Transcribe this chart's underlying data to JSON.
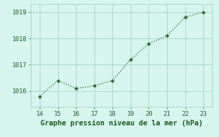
{
  "x": [
    14,
    15,
    16,
    17,
    18,
    19,
    20,
    21,
    22,
    23
  ],
  "y": [
    1015.8,
    1016.4,
    1016.1,
    1016.2,
    1016.4,
    1017.2,
    1017.8,
    1018.1,
    1018.8,
    1019.0
  ],
  "line_color": "#2d6e2d",
  "marker": "D",
  "marker_size": 2.5,
  "line_width": 1.0,
  "background_color": "#d5f5ee",
  "grid_color": "#b0d8cc",
  "xlabel": "Graphe pression niveau de la mer (hPa)",
  "xlabel_color": "#1a5c1a",
  "xlabel_fontsize": 7.5,
  "tick_color": "#1a5c1a",
  "tick_fontsize": 6.5,
  "xlim": [
    13.5,
    23.5
  ],
  "ylim": [
    1015.4,
    1019.3
  ],
  "yticks": [
    1016,
    1017,
    1018,
    1019
  ],
  "xticks": [
    14,
    15,
    16,
    17,
    18,
    19,
    20,
    21,
    22,
    23
  ]
}
